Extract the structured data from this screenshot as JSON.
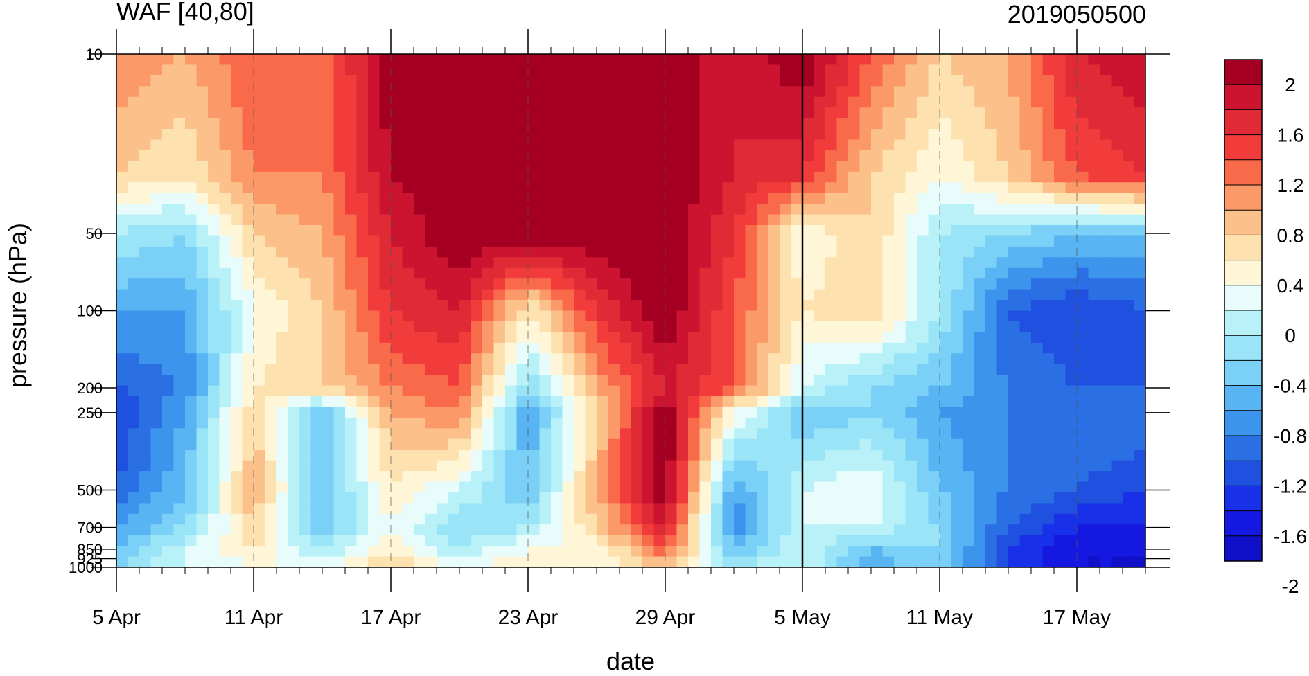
{
  "chart_data": {
    "type": "heatmap",
    "title_left": "WAF [40,80]",
    "title_right": "2019050500",
    "xlabel": "date",
    "ylabel": "pressure (hPa)",
    "x_tick_labels": [
      "5 Apr",
      "11 Apr",
      "17 Apr",
      "23 Apr",
      "29 Apr",
      "5 May",
      "11 May",
      "17 May"
    ],
    "x_tick_days": [
      0,
      6,
      12,
      18,
      24,
      30,
      36,
      42
    ],
    "x_range_days": [
      0,
      45
    ],
    "y_tick_labels": [
      "10",
      "50",
      "100",
      "200",
      "250",
      "500",
      "700",
      "850",
      "925",
      "1000"
    ],
    "y_ticks": [
      10,
      50,
      100,
      200,
      250,
      500,
      700,
      850,
      925,
      1000
    ],
    "y_range": [
      10,
      1000
    ],
    "y_scale": "log",
    "y_reversed": true,
    "colorbar": {
      "labels": [
        "2",
        "1.6",
        "1.2",
        "0.8",
        "0.4",
        "0",
        "-0.4",
        "-0.8",
        "-1.2",
        "-1.6",
        "-2"
      ],
      "levels": [
        2,
        1.8,
        1.6,
        1.4,
        1.2,
        1.0,
        0.8,
        0.6,
        0.4,
        0.2,
        0,
        -0.2,
        -0.4,
        -0.6,
        -0.8,
        -1.0,
        -1.2,
        -1.4,
        -1.6,
        -1.8,
        -2
      ],
      "colors": [
        "#a50021",
        "#cc1430",
        "#e02a35",
        "#f23c3c",
        "#f96a4a",
        "#fb9a68",
        "#fcc08a",
        "#fde2b0",
        "#fff6d8",
        "#e8fcfc",
        "#b8f2f8",
        "#9ae4f8",
        "#7ad0f6",
        "#58b4f2",
        "#3c94ec",
        "#2a70e4",
        "#2050e0",
        "#1830e8",
        "#1418e0",
        "#1010c8"
      ]
    },
    "vertical_marker_day": 30,
    "grid": "dashed vertical at major ticks",
    "values_note": "contour field sampled approximately",
    "days": [
      0,
      3,
      6,
      9,
      12,
      15,
      18,
      21,
      24,
      27,
      30,
      33,
      36,
      39,
      42,
      45
    ],
    "levels_hPa": [
      10,
      30,
      50,
      100,
      200,
      250,
      500,
      700,
      850,
      1000
    ],
    "values": [
      [
        1.0,
        0.8,
        1.2,
        1.0,
        2.0,
        2.0,
        2.0,
        2.0,
        2.0,
        1.6,
        2.0,
        1.2,
        0.6,
        0.8,
        1.6,
        1.8
      ],
      [
        0.6,
        0.4,
        1.0,
        1.0,
        1.8,
        2.0,
        2.0,
        2.0,
        2.0,
        1.6,
        1.4,
        0.6,
        0.2,
        0.6,
        1.2,
        1.4
      ],
      [
        -0.2,
        -0.4,
        0.6,
        0.8,
        1.6,
        2.0,
        2.0,
        2.0,
        2.0,
        1.4,
        0.2,
        0.6,
        -0.2,
        -0.4,
        -0.6,
        -0.6
      ],
      [
        -0.8,
        -0.8,
        0.2,
        0.6,
        1.4,
        1.6,
        0.4,
        1.4,
        2.0,
        1.2,
        0.4,
        0.6,
        -0.2,
        -1.2,
        -1.4,
        -1.2
      ],
      [
        -1.2,
        -1.0,
        0.4,
        0.6,
        1.0,
        1.2,
        -0.4,
        0.8,
        1.6,
        1.2,
        0.0,
        -0.4,
        -0.6,
        -1.0,
        -1.2,
        -1.2
      ],
      [
        -1.4,
        -0.8,
        0.6,
        -0.6,
        0.8,
        1.0,
        -0.8,
        0.6,
        2.0,
        0.2,
        -0.6,
        -0.4,
        -0.8,
        -1.0,
        -1.0,
        -1.0
      ],
      [
        -1.2,
        -0.6,
        0.8,
        -0.6,
        0.4,
        0.0,
        -0.6,
        0.8,
        2.0,
        -0.8,
        0.0,
        0.2,
        -0.6,
        -1.0,
        -1.2,
        -1.4
      ],
      [
        -0.8,
        -0.4,
        0.6,
        -0.6,
        0.2,
        -0.4,
        -0.2,
        0.6,
        1.6,
        -1.0,
        0.0,
        0.0,
        -0.4,
        -1.2,
        -1.6,
        -1.6
      ],
      [
        -0.6,
        0.0,
        0.4,
        -0.2,
        0.4,
        -0.2,
        0.2,
        0.2,
        1.2,
        -0.6,
        0.0,
        -0.6,
        -0.4,
        -1.4,
        -1.8,
        -1.8
      ],
      [
        -0.4,
        0.0,
        0.2,
        0.2,
        0.6,
        0.2,
        0.4,
        0.2,
        0.6,
        -0.2,
        0.0,
        -0.8,
        -0.4,
        -1.4,
        -1.8,
        -1.8
      ]
    ]
  }
}
